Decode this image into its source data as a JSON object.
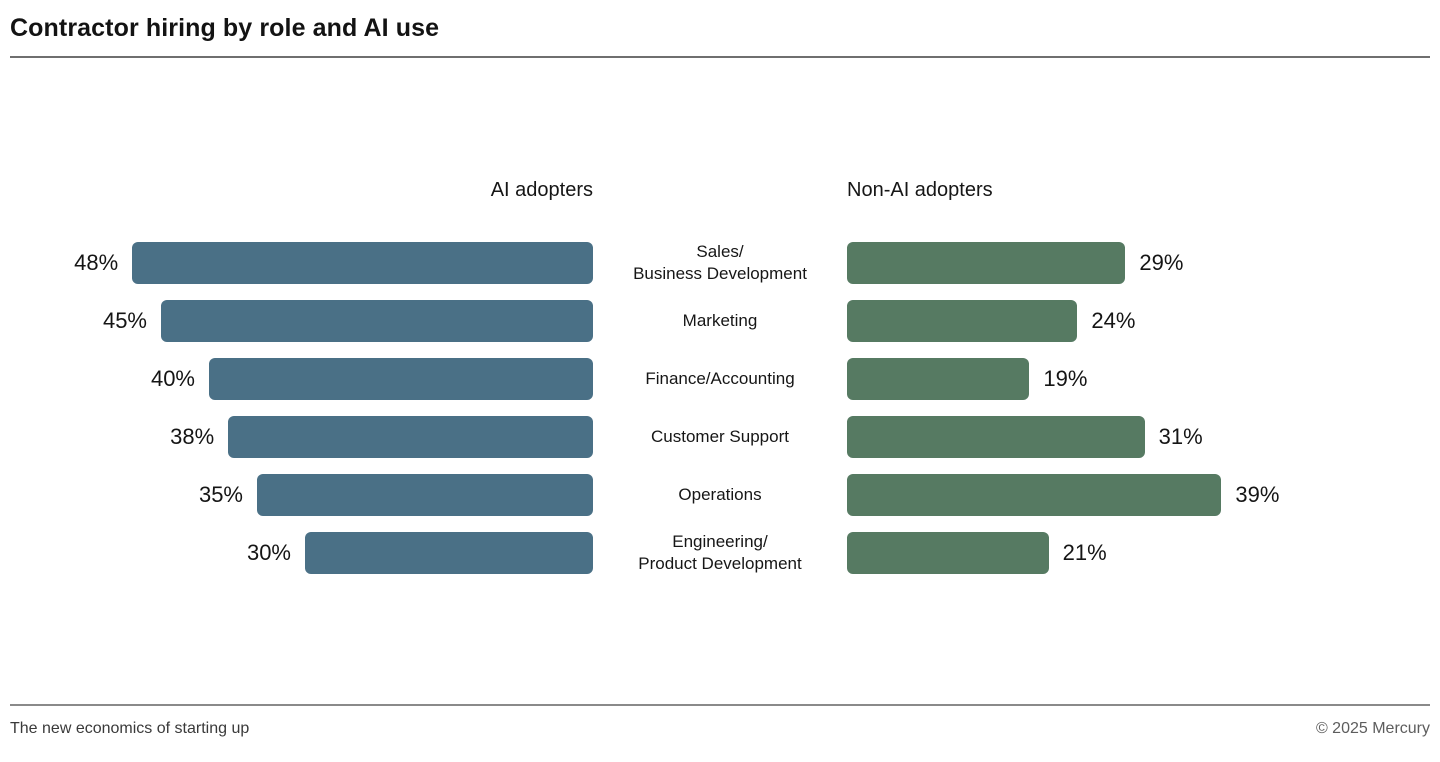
{
  "title": "Contractor hiring by role and AI use",
  "columns": {
    "left_header": "AI adopters",
    "right_header": "Non-AI adopters"
  },
  "colors": {
    "ai_bar": "#4a7086",
    "non_ai_bar": "#567a62",
    "text": "#141414",
    "rule": "#6f6f6f"
  },
  "footer": {
    "left": "The new economics of starting up",
    "right": "© 2025 Mercury"
  },
  "chart_data": {
    "type": "bar",
    "orientation": "horizontal",
    "layout": "diverging-from-center-labels",
    "categories": [
      "Sales/\nBusiness Development",
      "Marketing",
      "Finance/Accounting",
      "Customer Support",
      "Operations",
      "Engineering/\nProduct Development"
    ],
    "series": [
      {
        "name": "AI adopters",
        "color": "#4a7086",
        "values": [
          48,
          45,
          40,
          38,
          35,
          30
        ]
      },
      {
        "name": "Non-AI adopters",
        "color": "#567a62",
        "values": [
          29,
          24,
          19,
          31,
          39,
          21
        ]
      }
    ],
    "value_suffix": "%",
    "value_labels_shown": true,
    "xlim": [
      0,
      50
    ],
    "grid": false,
    "legend_position": "column-headers"
  }
}
